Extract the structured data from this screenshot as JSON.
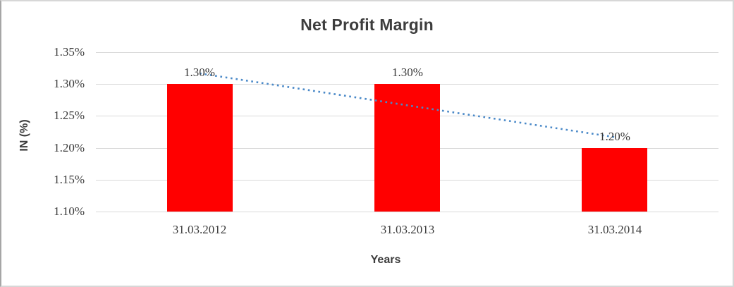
{
  "chart_data": {
    "type": "bar",
    "title": "Net Profit Margin",
    "xlabel": "Years",
    "ylabel": "IN (%)",
    "categories": [
      "31.03.2012",
      "31.03.2013",
      "31.03.2014"
    ],
    "series": [
      {
        "name": "Net Profit Margin",
        "values": [
          1.3,
          1.3,
          1.2
        ]
      }
    ],
    "data_labels": [
      "1.30%",
      "1.30%",
      "1.20%"
    ],
    "y_tick_labels": [
      "1.35%",
      "1.30%",
      "1.25%",
      "1.20%",
      "1.15%",
      "1.10%"
    ],
    "y_tick_values": [
      1.35,
      1.3,
      1.25,
      1.2,
      1.15,
      1.1
    ],
    "ylim": [
      1.1,
      1.35
    ],
    "grid": true,
    "legend": "none",
    "bar_color": "#ff0000",
    "gridline_color": "#d9d9d9",
    "label_color": "#3a3a3a",
    "title_color": "#3d3d3d",
    "trendline": {
      "type": "linear",
      "style": "dotted",
      "color": "#4a89c8",
      "values": [
        1.3167,
        1.2667,
        1.2167
      ]
    }
  }
}
